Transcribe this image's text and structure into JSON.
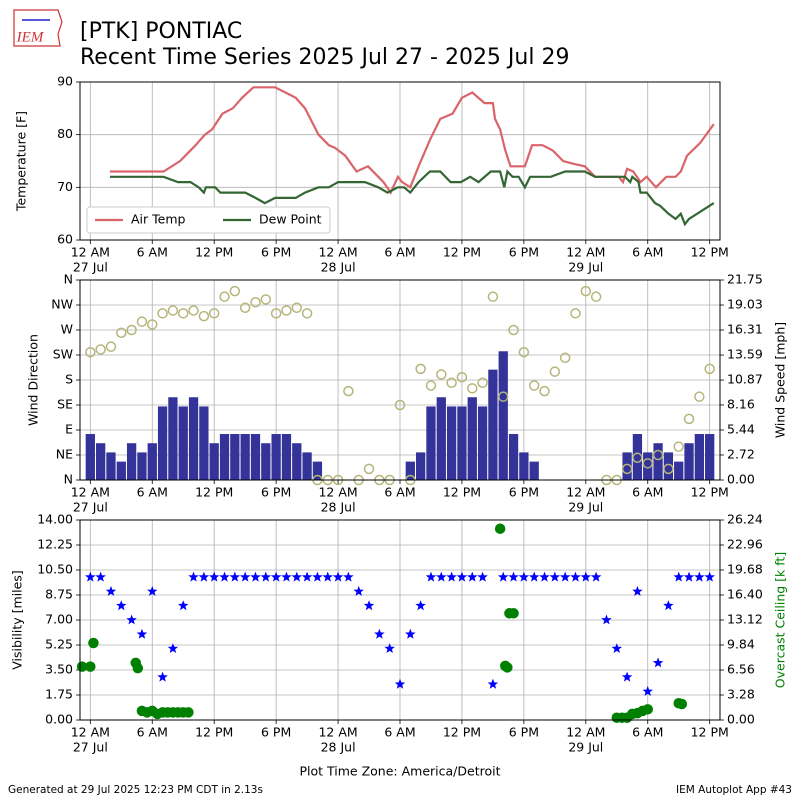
{
  "header": {
    "title": "[PTK] PONTIAC",
    "subtitle": "Recent Time Series 2025 Jul 27 - 2025 Jul 29",
    "logo": "IEM"
  },
  "footer": {
    "left": "Generated at 29 Jul 2025 12:23 PM CDT in 2.13s",
    "right": "IEM Autoplot App #43"
  },
  "chart_data": [
    {
      "type": "line",
      "ylabel": "Temperature [F]",
      "ylim": [
        60,
        90
      ],
      "yticks": [
        60,
        70,
        80,
        90
      ],
      "xlim": [
        -1,
        61
      ],
      "grid": true,
      "legend": "lower left",
      "xticks": [
        {
          "value": 0,
          "label": "12 AM"
        },
        {
          "value": 6,
          "label": "6 AM"
        },
        {
          "value": 12,
          "label": "12 PM"
        },
        {
          "value": 18,
          "label": "6 PM"
        },
        {
          "value": 24,
          "label": "12 AM"
        },
        {
          "value": 30,
          "label": "6 AM"
        },
        {
          "value": 36,
          "label": "12 PM"
        },
        {
          "value": 42,
          "label": "6 PM"
        },
        {
          "value": 48,
          "label": "12 AM"
        },
        {
          "value": 54,
          "label": "6 AM"
        },
        {
          "value": 60,
          "label": "12 PM"
        }
      ],
      "xtick_dates": [
        {
          "value": 0,
          "label": "27 Jul"
        },
        {
          "value": 24,
          "label": "28 Jul"
        },
        {
          "value": 48,
          "label": "29 Jul"
        }
      ],
      "series": [
        {
          "name": "Air Temp",
          "type": "line",
          "color": "#d9646a",
          "x": [
            1.9,
            7.1,
            8.7,
            10.2,
            11.1,
            11.8,
            12.8,
            13.8,
            14.7,
            15.8,
            17.9,
            18.9,
            19.9,
            20.8,
            22.1,
            23.1,
            23.7,
            24.7,
            25.8,
            26.9,
            27.9,
            28.4,
            29.1,
            29.8,
            30.2,
            31.0,
            31.8,
            32.9,
            33.9,
            35.1,
            36.0,
            37.0,
            38.2,
            39.0,
            39.2,
            39.7,
            40.2,
            40.7,
            42.1,
            42.8,
            43.8,
            44.8,
            45.8,
            46.7,
            47.9,
            48.9,
            51.2,
            51.6,
            52.0,
            52.6,
            53.3,
            53.9,
            54.8,
            55.8,
            56.7,
            57.2,
            57.8,
            59.1,
            60.4
          ],
          "values": [
            73,
            73,
            75,
            78,
            80,
            81,
            84,
            85,
            87,
            89,
            89,
            88,
            87,
            85,
            80,
            78,
            77.5,
            76,
            73,
            74,
            72,
            71,
            69,
            72,
            71,
            70,
            74,
            79,
            83,
            84,
            87,
            88,
            86,
            86,
            83,
            81,
            77,
            74,
            74,
            78,
            78,
            77,
            75,
            74.5,
            74,
            72,
            72,
            71,
            73.5,
            73,
            71,
            72,
            70,
            72,
            72,
            73,
            76,
            78.5,
            82
          ]
        },
        {
          "name": "Dew Point",
          "type": "line",
          "color": "#336633",
          "x": [
            1.9,
            7.1,
            8.5,
            9.7,
            10.5,
            11.0,
            11.2,
            12.1,
            12.6,
            15.0,
            16.0,
            16.9,
            17.9,
            19.9,
            20.8,
            22.1,
            23.1,
            24.0,
            26.6,
            27.9,
            28.8,
            29.8,
            30.4,
            31.0,
            31.8,
            32.9,
            33.9,
            34.9,
            35.9,
            36.8,
            37.6,
            38.8,
            39.7,
            40.1,
            40.4,
            40.9,
            41.5,
            42.1,
            42.6,
            44.6,
            46.0,
            47.9,
            48.9,
            51.8,
            52.3,
            52.5,
            53.1,
            53.3,
            53.9,
            54.7,
            55.2,
            56.0,
            56.7,
            57.2,
            57.6,
            58.0,
            60.4
          ],
          "values": [
            72,
            72,
            71,
            71,
            70,
            69,
            70,
            70,
            69,
            69,
            68,
            67,
            68,
            68,
            69,
            70,
            70,
            71,
            71,
            70,
            69,
            70,
            70,
            69,
            71,
            73,
            73,
            71,
            71,
            72,
            71,
            73,
            73,
            70,
            73,
            72,
            72,
            70,
            72,
            72,
            73,
            73,
            72,
            72,
            71,
            72,
            71,
            69,
            69,
            67,
            66.5,
            65,
            64,
            65,
            63,
            64,
            67
          ]
        }
      ]
    },
    {
      "type": "combo",
      "ylabel": "Wind Direction",
      "y2label": "Wind Speed [mph]",
      "ylim": [
        0,
        360
      ],
      "yticks": [
        {
          "value": 0,
          "label": "N"
        },
        {
          "value": 45,
          "label": "NE"
        },
        {
          "value": 90,
          "label": "E"
        },
        {
          "value": 135,
          "label": "SE"
        },
        {
          "value": 180,
          "label": "S"
        },
        {
          "value": 225,
          "label": "SW"
        },
        {
          "value": 270,
          "label": "W"
        },
        {
          "value": 315,
          "label": "NW"
        },
        {
          "value": 360,
          "label": "N"
        }
      ],
      "y2lim": [
        0,
        21.75
      ],
      "y2ticks": [
        {
          "value": 0,
          "label": "0.00"
        },
        2.72,
        5.44,
        8.16,
        10.87,
        13.59,
        16.31,
        19.03,
        21.75
      ],
      "xlim": [
        -1,
        61
      ],
      "grid": true,
      "xticks": [
        {
          "value": 0,
          "label": "12 AM"
        },
        {
          "value": 6,
          "label": "6 AM"
        },
        {
          "value": 12,
          "label": "12 PM"
        },
        {
          "value": 18,
          "label": "6 PM"
        },
        {
          "value": 24,
          "label": "12 AM"
        },
        {
          "value": 30,
          "label": "6 AM"
        },
        {
          "value": 36,
          "label": "12 PM"
        },
        {
          "value": 42,
          "label": "6 PM"
        },
        {
          "value": 48,
          "label": "12 AM"
        },
        {
          "value": 54,
          "label": "6 AM"
        },
        {
          "value": 60,
          "label": "12 PM"
        }
      ],
      "xtick_dates": [
        {
          "value": 0,
          "label": "27 Jul"
        },
        {
          "value": 24,
          "label": "28 Jul"
        },
        {
          "value": 48,
          "label": "29 Jul"
        }
      ],
      "x": [
        0,
        1,
        2,
        3,
        4,
        5,
        6,
        7,
        8,
        9,
        10,
        11,
        12,
        13,
        14,
        15,
        16,
        17,
        18,
        19,
        20,
        21,
        22,
        23,
        24,
        25,
        26,
        27,
        28,
        29,
        30,
        31,
        32,
        33,
        34,
        35,
        36,
        37,
        38,
        39,
        40,
        41,
        42,
        43,
        44,
        45,
        46,
        47,
        48,
        49,
        50,
        51,
        52,
        53,
        54,
        55,
        56,
        57,
        58,
        59,
        60
      ],
      "series": [
        {
          "type": "bar",
          "axis": "y2",
          "color": "#333399",
          "values": [
            5,
            4,
            3,
            2,
            4,
            3,
            4,
            8,
            9,
            8,
            9,
            8,
            4,
            5,
            5,
            5,
            5,
            4,
            5,
            5,
            4,
            3,
            2,
            0,
            0,
            0,
            0,
            0,
            0,
            0,
            0,
            2,
            3,
            8,
            9,
            8,
            8,
            9,
            8,
            12,
            14,
            5,
            3,
            2,
            0,
            0,
            0,
            0,
            0,
            0,
            0,
            0,
            3,
            5,
            3,
            4,
            3,
            2,
            4,
            5,
            5
          ]
        },
        {
          "type": "scatter",
          "marker": "circle",
          "hollow": true,
          "color": "#b5b57a",
          "values": [
            230,
            235,
            240,
            265,
            270,
            285,
            280,
            300,
            305,
            300,
            305,
            295,
            300,
            330,
            340,
            310,
            320,
            325,
            300,
            305,
            310,
            300,
            0,
            0,
            0,
            160,
            0,
            20,
            0,
            0,
            135,
            0,
            200,
            170,
            190,
            175,
            185,
            165,
            175,
            330,
            150,
            270,
            230,
            170,
            160,
            195,
            220,
            300,
            340,
            330,
            0,
            0,
            20,
            40,
            30,
            45,
            20,
            60,
            110,
            150,
            200
          ]
        }
      ]
    },
    {
      "type": "scatter",
      "ylabel": "Visibility [miles]",
      "y2label": "Overcast Ceiling [k ft]",
      "y2label_color": "#008000",
      "xlabel": "Plot Time Zone: America/Detroit",
      "ylim": [
        0,
        14
      ],
      "yticks": [
        {
          "value": 0,
          "label": "0.00"
        },
        1.75,
        {
          "value": 3.5,
          "label": "3.50"
        },
        5.25,
        {
          "value": 7,
          "label": "7.00"
        },
        8.75,
        {
          "value": 10.5,
          "label": "10.50"
        },
        12.25,
        {
          "value": 14,
          "label": "14.00"
        }
      ],
      "y2lim": [
        0,
        26.24
      ],
      "y2ticks": [
        {
          "value": 0,
          "label": "0.00"
        },
        3.28,
        6.56,
        9.84,
        13.12,
        {
          "value": 16.4,
          "label": "16.40"
        },
        19.68,
        22.96,
        26.24
      ],
      "xlim": [
        -1,
        61
      ],
      "grid": true,
      "xticks": [
        {
          "value": 0,
          "label": "12 AM"
        },
        {
          "value": 6,
          "label": "6 AM"
        },
        {
          "value": 12,
          "label": "12 PM"
        },
        {
          "value": 18,
          "label": "6 PM"
        },
        {
          "value": 24,
          "label": "12 AM"
        },
        {
          "value": 30,
          "label": "6 AM"
        },
        {
          "value": 36,
          "label": "12 PM"
        },
        {
          "value": 42,
          "label": "6 PM"
        },
        {
          "value": 48,
          "label": "12 AM"
        },
        {
          "value": 54,
          "label": "6 AM"
        },
        {
          "value": 60,
          "label": "12 PM"
        }
      ],
      "xtick_dates": [
        {
          "value": 0,
          "label": "27 Jul"
        },
        {
          "value": 24,
          "label": "28 Jul"
        },
        {
          "value": 48,
          "label": "29 Jul"
        }
      ],
      "x": [
        0,
        1,
        2,
        3,
        4,
        5,
        6,
        7,
        8,
        9,
        10,
        11,
        12,
        13,
        14,
        15,
        16,
        17,
        18,
        19,
        20,
        21,
        22,
        23,
        24,
        25,
        26,
        27,
        28,
        29,
        30,
        31,
        32,
        33,
        34,
        35,
        36,
        37,
        38,
        39,
        40,
        41,
        42,
        43,
        44,
        45,
        46,
        47,
        48,
        49,
        50,
        51,
        52,
        53,
        54,
        55,
        56,
        57,
        58,
        59,
        60
      ],
      "series": [
        {
          "type": "scatter",
          "marker": "star",
          "color": "#0000ff",
          "values": [
            10,
            10,
            9,
            8,
            7,
            6,
            9,
            3,
            5,
            8,
            10,
            10,
            10,
            10,
            10,
            10,
            10,
            10,
            10,
            10,
            10,
            10,
            10,
            10,
            10,
            10,
            9,
            8,
            6,
            5,
            2.5,
            6,
            8,
            10,
            10,
            10,
            10,
            10,
            10,
            2.5,
            10,
            10,
            10,
            10,
            10,
            10,
            10,
            10,
            10,
            10,
            7,
            5,
            3,
            9,
            2,
            4,
            8,
            10,
            10,
            10,
            10
          ]
        },
        {
          "type": "scatter",
          "marker": "circle",
          "axis": "y2",
          "color": "#008000",
          "x": [
            -0.8,
            0.0,
            0.3,
            4.4,
            4.6,
            5.0,
            5.5,
            6.0,
            6.5,
            7.0,
            7.5,
            8.0,
            8.5,
            9.0,
            9.5,
            39.7,
            40.2,
            40.4,
            40.6,
            41.0,
            51.0,
            51.5,
            52.0,
            52.5,
            53.0,
            53.5,
            54.0,
            57.0,
            57.3
          ],
          "values": [
            7.0,
            7.0,
            10.1,
            7.5,
            6.8,
            1.2,
            1.0,
            1.2,
            0.8,
            1.0,
            1.0,
            1.0,
            1.0,
            1.0,
            1.0,
            25.1,
            7.1,
            6.9,
            14.0,
            14.0,
            0.3,
            0.3,
            0.3,
            0.8,
            0.9,
            1.2,
            1.4,
            2.2,
            2.1
          ]
        }
      ]
    }
  ]
}
